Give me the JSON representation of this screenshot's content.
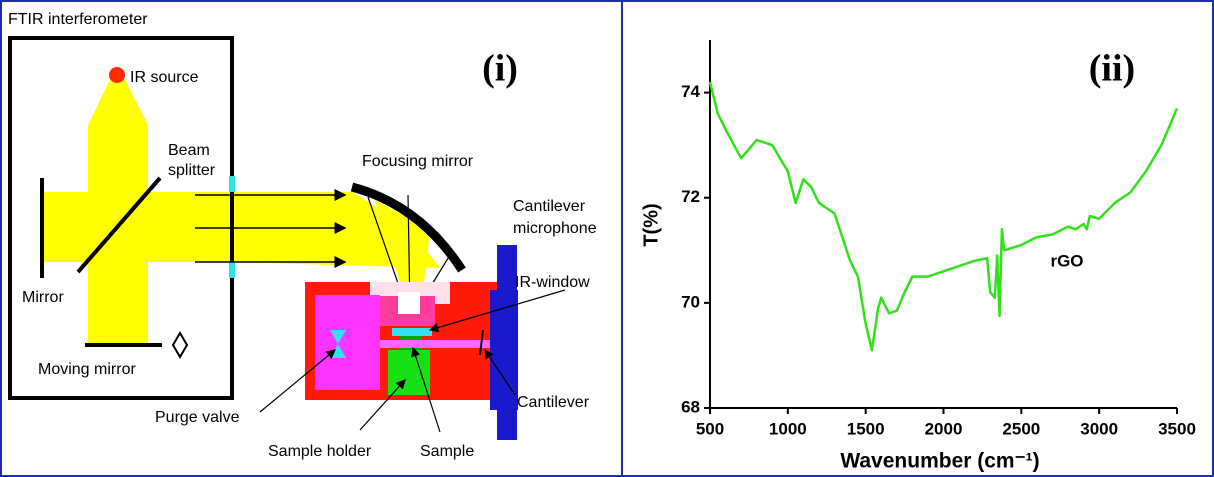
{
  "diagram": {
    "title": "FTIR interferometer",
    "panel_label": "(i)",
    "labels": {
      "ir_source": "IR source",
      "beam_splitter": [
        "Beam",
        "splitter"
      ],
      "focusing_mirror": "Focusing mirror",
      "cantilever_microphone": [
        "Cantilever",
        "microphone"
      ],
      "ir_window": "IR-window",
      "mirror": "Mirror",
      "moving_mirror": "Moving mirror",
      "purge_valve": "Purge valve",
      "cantilever": "Cantilever",
      "sample_holder": "Sample holder",
      "sample": "Sample"
    }
  },
  "chart_data": {
    "type": "line",
    "panel_label": "(ii)",
    "xlabel": "Wavenumber (cm⁻¹)",
    "ylabel": "T(%)",
    "annotation": "rGO",
    "color": "#33e01c",
    "x": [
      500,
      550,
      600,
      700,
      800,
      900,
      1000,
      1050,
      1100,
      1150,
      1200,
      1300,
      1400,
      1450,
      1500,
      1540,
      1580,
      1600,
      1650,
      1700,
      1750,
      1800,
      1900,
      2000,
      2100,
      2200,
      2280,
      2300,
      2330,
      2345,
      2360,
      2375,
      2390,
      2500,
      2600,
      2700,
      2800,
      2850,
      2900,
      2920,
      2940,
      3000,
      3100,
      3200,
      3300,
      3400,
      3500
    ],
    "values": [
      74.2,
      73.6,
      73.3,
      72.75,
      73.1,
      73.0,
      72.5,
      71.9,
      72.35,
      72.2,
      71.9,
      71.7,
      70.8,
      70.5,
      69.6,
      69.1,
      69.9,
      70.1,
      69.8,
      69.85,
      70.2,
      70.5,
      70.5,
      70.6,
      70.7,
      70.8,
      70.85,
      70.2,
      70.1,
      70.9,
      69.75,
      71.4,
      71.0,
      71.1,
      71.25,
      71.3,
      71.45,
      71.4,
      71.5,
      71.4,
      71.65,
      71.6,
      71.9,
      72.1,
      72.5,
      73.0,
      73.7
    ],
    "xlim": [
      500,
      3500
    ],
    "xticks": [
      500,
      1000,
      1500,
      2000,
      2500,
      3000,
      3500
    ],
    "ylim": [
      68,
      75
    ],
    "yticks": [
      68,
      70,
      72,
      74
    ]
  }
}
